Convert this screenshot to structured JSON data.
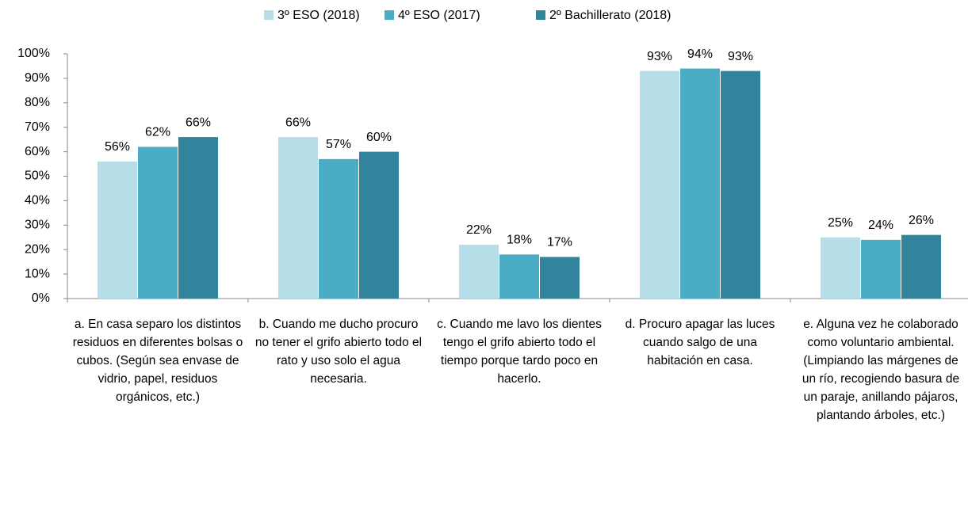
{
  "chart_data": {
    "type": "bar",
    "categories": [
      "a. En casa separo los distintos residuos en diferentes bolsas o cubos. (Según sea envase de vidrio, papel, residuos orgánicos, etc.)",
      "b. Cuando me ducho procuro no tener el grifo abierto todo el rato y uso solo el agua necesaria.",
      "c. Cuando me lavo los dientes tengo el grifo abierto todo el tiempo porque tardo poco en hacerlo.",
      "d. Procuro apagar las luces cuando salgo de una habitación en casa.",
      "e. Alguna vez he colaborado como voluntario ambiental. (Limpiando las márgenes de un río, recogiendo basura de un paraje, anillando pájaros, plantando árboles, etc.)"
    ],
    "series": [
      {
        "name": "3º ESO (2018)",
        "color": "#b7dde8",
        "values": [
          56,
          66,
          22,
          93,
          25
        ],
        "value_labels": [
          "56%",
          "66%",
          "22%",
          "93%",
          "25%"
        ]
      },
      {
        "name": "4º ESO (2017)",
        "color": "#4bacc6",
        "values": [
          62,
          57,
          18,
          94,
          24
        ],
        "value_labels": [
          "62%",
          "57%",
          "18%",
          "94%",
          "24%"
        ]
      },
      {
        "name": "2º Bachillerato (2018)",
        "color": "#31849b",
        "values": [
          66,
          60,
          17,
          93,
          26
        ],
        "value_labels": [
          "66%",
          "60%",
          "17%",
          "93%",
          "26%"
        ]
      }
    ],
    "ylim": [
      0,
      100
    ],
    "yticks": [
      {
        "value": 0,
        "label": "0%"
      },
      {
        "value": 10,
        "label": "10%"
      },
      {
        "value": 20,
        "label": "20%"
      },
      {
        "value": 30,
        "label": "30%"
      },
      {
        "value": 40,
        "label": "40%"
      },
      {
        "value": 50,
        "label": "50%"
      },
      {
        "value": 60,
        "label": "60%"
      },
      {
        "value": 70,
        "label": "70%"
      },
      {
        "value": 80,
        "label": "80%"
      },
      {
        "value": 90,
        "label": "90%"
      },
      {
        "value": 100,
        "label": "100%"
      }
    ],
    "legend": "top",
    "grid": false
  }
}
